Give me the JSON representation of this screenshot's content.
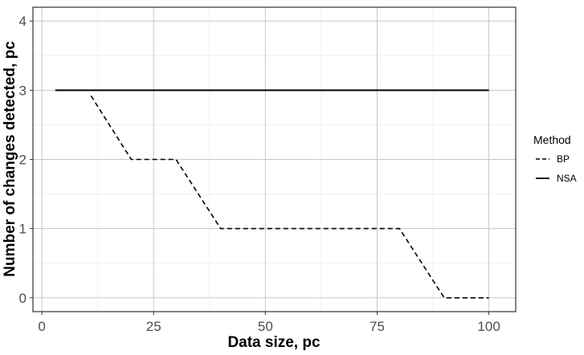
{
  "chart_data": {
    "type": "line",
    "xlabel": "Data size, pc",
    "ylabel": "Number of changes detected, pc",
    "xlim": [
      -2,
      106
    ],
    "ylim": [
      -0.2,
      4.2
    ],
    "xticks": [
      0,
      25,
      50,
      75,
      100
    ],
    "yticks": [
      0,
      1,
      2,
      3,
      4
    ],
    "xtick_labels": [
      "0",
      "25",
      "50",
      "75",
      "100"
    ],
    "ytick_labels": [
      "0",
      "1",
      "2",
      "3",
      "4"
    ],
    "grid": true,
    "legend": {
      "title": "Method",
      "position": "right",
      "entries": [
        "BP",
        "NSA"
      ]
    },
    "series": [
      {
        "name": "BP",
        "style": "dashed",
        "color": "#000000",
        "x": [
          11,
          20,
          30,
          40,
          50,
          60,
          70,
          80,
          90,
          100
        ],
        "y": [
          2.92,
          2,
          2,
          1,
          1,
          1,
          1,
          1,
          0,
          0
        ]
      },
      {
        "name": "NSA",
        "style": "solid",
        "color": "#000000",
        "x": [
          3,
          100
        ],
        "y": [
          3,
          3
        ]
      }
    ]
  }
}
